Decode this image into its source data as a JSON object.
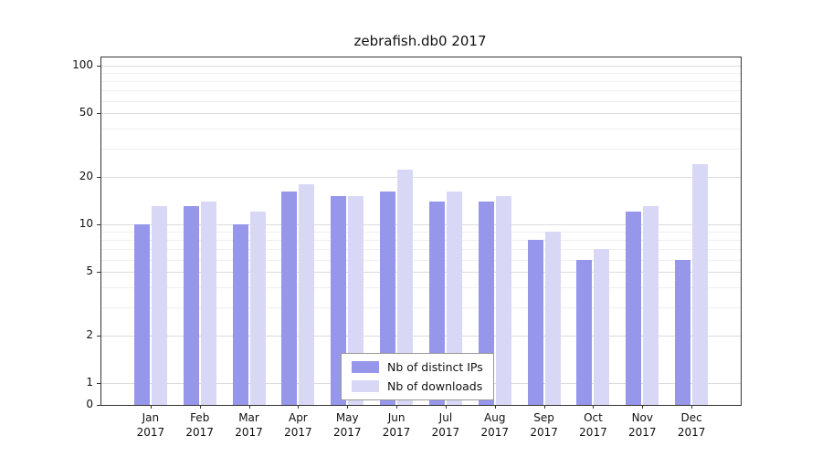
{
  "chart_data": {
    "type": "bar",
    "title": "zebrafish.db0 2017",
    "categories": [
      "Jan",
      "Feb",
      "Mar",
      "Apr",
      "May",
      "Jun",
      "Jul",
      "Aug",
      "Sep",
      "Oct",
      "Nov",
      "Dec"
    ],
    "year_label": "2017",
    "series": [
      {
        "name": "Nb of distinct IPs",
        "color": "#9696ea",
        "values": [
          10,
          13,
          10,
          16,
          15,
          16,
          14,
          14,
          8,
          6,
          12,
          6
        ]
      },
      {
        "name": "Nb of downloads",
        "color": "#d8d8f6",
        "values": [
          13,
          14,
          12,
          18,
          15,
          22,
          16,
          15,
          9,
          7,
          13,
          24
        ]
      }
    ],
    "yscale": "log",
    "yticks": [
      0,
      1,
      2,
      5,
      10,
      20,
      50,
      100
    ],
    "ylim": [
      0,
      100
    ],
    "grid": true,
    "legend_position": "lower center"
  },
  "colors": {
    "background": "#ffffff",
    "axis": "#333333",
    "grid_major": "#dcdcdc",
    "grid_minor": "#efefef",
    "legend_border": "#999999",
    "text": "#111111"
  }
}
